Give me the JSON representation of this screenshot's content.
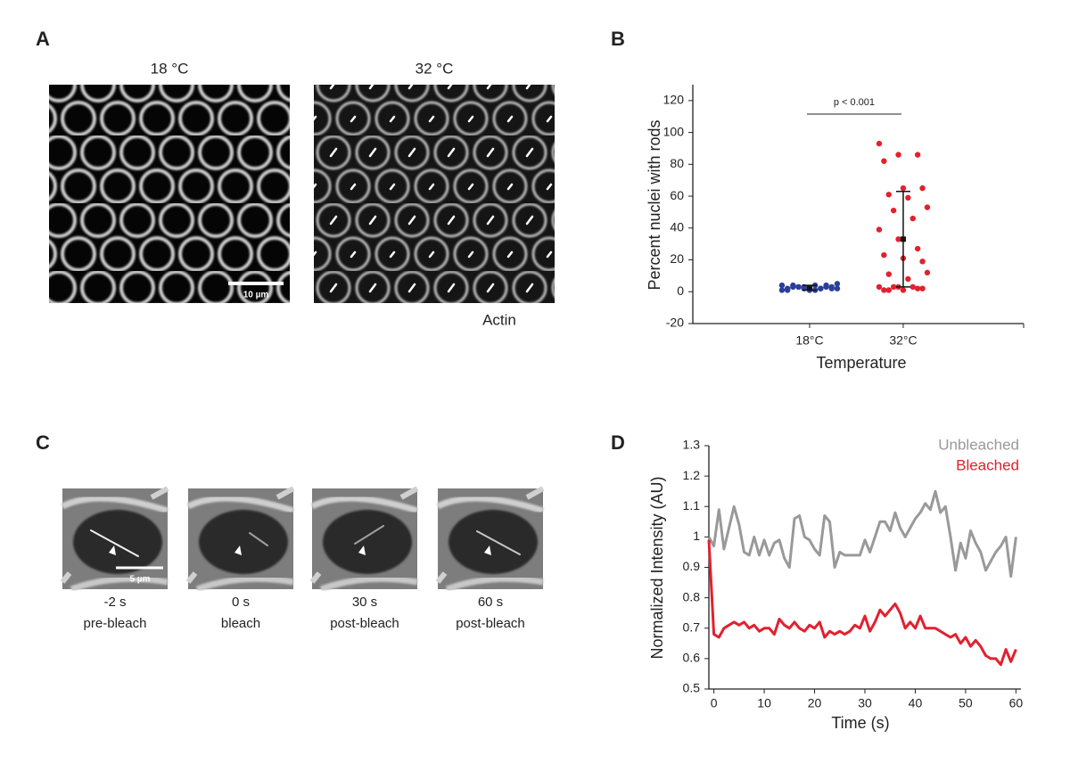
{
  "panel_labels": [
    "A",
    "B",
    "C",
    "D"
  ],
  "panel_a": {
    "titles": [
      "18 °C",
      "32 °C"
    ],
    "scale_bar": "10 µm",
    "stain": "Actin"
  },
  "panel_c": {
    "scale_bar": "5 µm",
    "frames": [
      {
        "time": "-2 s",
        "label": "pre-bleach"
      },
      {
        "time": "0 s",
        "label": "bleach"
      },
      {
        "time": "30 s",
        "label": "post-bleach"
      },
      {
        "time": "60 s",
        "label": "post-bleach"
      }
    ]
  },
  "chart_data": [
    {
      "type": "strip",
      "x_label": "Temperature",
      "y_label": "Percent nuclei with rods",
      "annotation": "p < 0.001",
      "categories": [
        "18°C",
        "32°C"
      ],
      "colors": [
        "#2b3f99",
        "#e3202e"
      ],
      "values": [
        [
          4,
          2,
          3,
          1,
          2,
          3,
          4,
          1,
          2,
          3,
          2,
          1,
          3,
          4,
          2,
          1,
          2,
          3,
          4,
          5,
          3,
          2
        ],
        [
          93,
          86,
          86,
          82,
          65,
          65,
          61,
          59,
          53,
          51,
          46,
          39,
          33,
          27,
          23,
          21,
          19,
          11,
          8,
          12,
          3,
          3,
          3,
          3,
          2,
          1,
          1,
          2,
          1
        ]
      ],
      "means": [
        2.5,
        33
      ],
      "errors": [
        1.5,
        30
      ],
      "ylim": [
        -20,
        130
      ],
      "yticks": [
        -20,
        0,
        20,
        40,
        60,
        80,
        100,
        120
      ]
    },
    {
      "type": "line",
      "x_label": "Time (s)",
      "y_label": "Normalized Intensity (AU)",
      "x": [
        -1,
        0,
        1,
        2,
        3,
        4,
        5,
        6,
        7,
        8,
        9,
        10,
        11,
        12,
        13,
        14,
        15,
        16,
        17,
        18,
        19,
        20,
        21,
        22,
        23,
        24,
        25,
        26,
        27,
        28,
        29,
        30,
        31,
        32,
        33,
        34,
        35,
        36,
        37,
        38,
        39,
        40,
        41,
        42,
        43,
        44,
        45,
        46,
        47,
        48,
        49,
        50,
        51,
        52,
        53,
        54,
        55,
        56,
        57,
        58,
        59,
        60
      ],
      "series": [
        {
          "name": "Unbleached",
          "color": "#999999",
          "values": [
            1.0,
            0.97,
            1.09,
            0.96,
            1.03,
            1.1,
            1.04,
            0.95,
            0.94,
            1.0,
            0.94,
            0.99,
            0.94,
            0.98,
            0.99,
            0.93,
            0.9,
            1.06,
            1.07,
            1.0,
            0.99,
            0.96,
            0.94,
            1.07,
            1.05,
            0.9,
            0.95,
            0.94,
            0.94,
            0.94,
            0.94,
            0.99,
            0.95,
            1.0,
            1.05,
            1.05,
            1.02,
            1.08,
            1.03,
            1.0,
            1.03,
            1.06,
            1.08,
            1.11,
            1.09,
            1.15,
            1.08,
            1.1,
            1.0,
            0.89,
            0.98,
            0.93,
            1.02,
            0.98,
            0.95,
            0.89,
            0.92,
            0.95,
            0.97,
            1.0,
            0.87,
            1.0
          ]
        },
        {
          "name": "Bleached",
          "color": "#e3202e",
          "values": [
            0.99,
            0.68,
            0.67,
            0.7,
            0.71,
            0.72,
            0.71,
            0.72,
            0.7,
            0.71,
            0.69,
            0.7,
            0.7,
            0.68,
            0.73,
            0.71,
            0.7,
            0.72,
            0.7,
            0.69,
            0.71,
            0.7,
            0.72,
            0.67,
            0.69,
            0.68,
            0.69,
            0.68,
            0.69,
            0.71,
            0.7,
            0.74,
            0.69,
            0.72,
            0.76,
            0.74,
            0.76,
            0.78,
            0.75,
            0.7,
            0.72,
            0.7,
            0.74,
            0.7,
            0.7,
            0.7,
            0.69,
            0.68,
            0.67,
            0.68,
            0.65,
            0.67,
            0.64,
            0.66,
            0.64,
            0.61,
            0.6,
            0.6,
            0.58,
            0.63,
            0.59,
            0.63
          ]
        }
      ],
      "xlim": [
        -1,
        61
      ],
      "xticks": [
        0,
        10,
        20,
        30,
        40,
        50,
        60
      ],
      "ylim": [
        0.5,
        1.3
      ],
      "yticks": [
        0.5,
        0.6,
        0.7,
        0.8,
        0.9,
        1,
        1.1,
        1.2,
        1.3
      ]
    }
  ]
}
